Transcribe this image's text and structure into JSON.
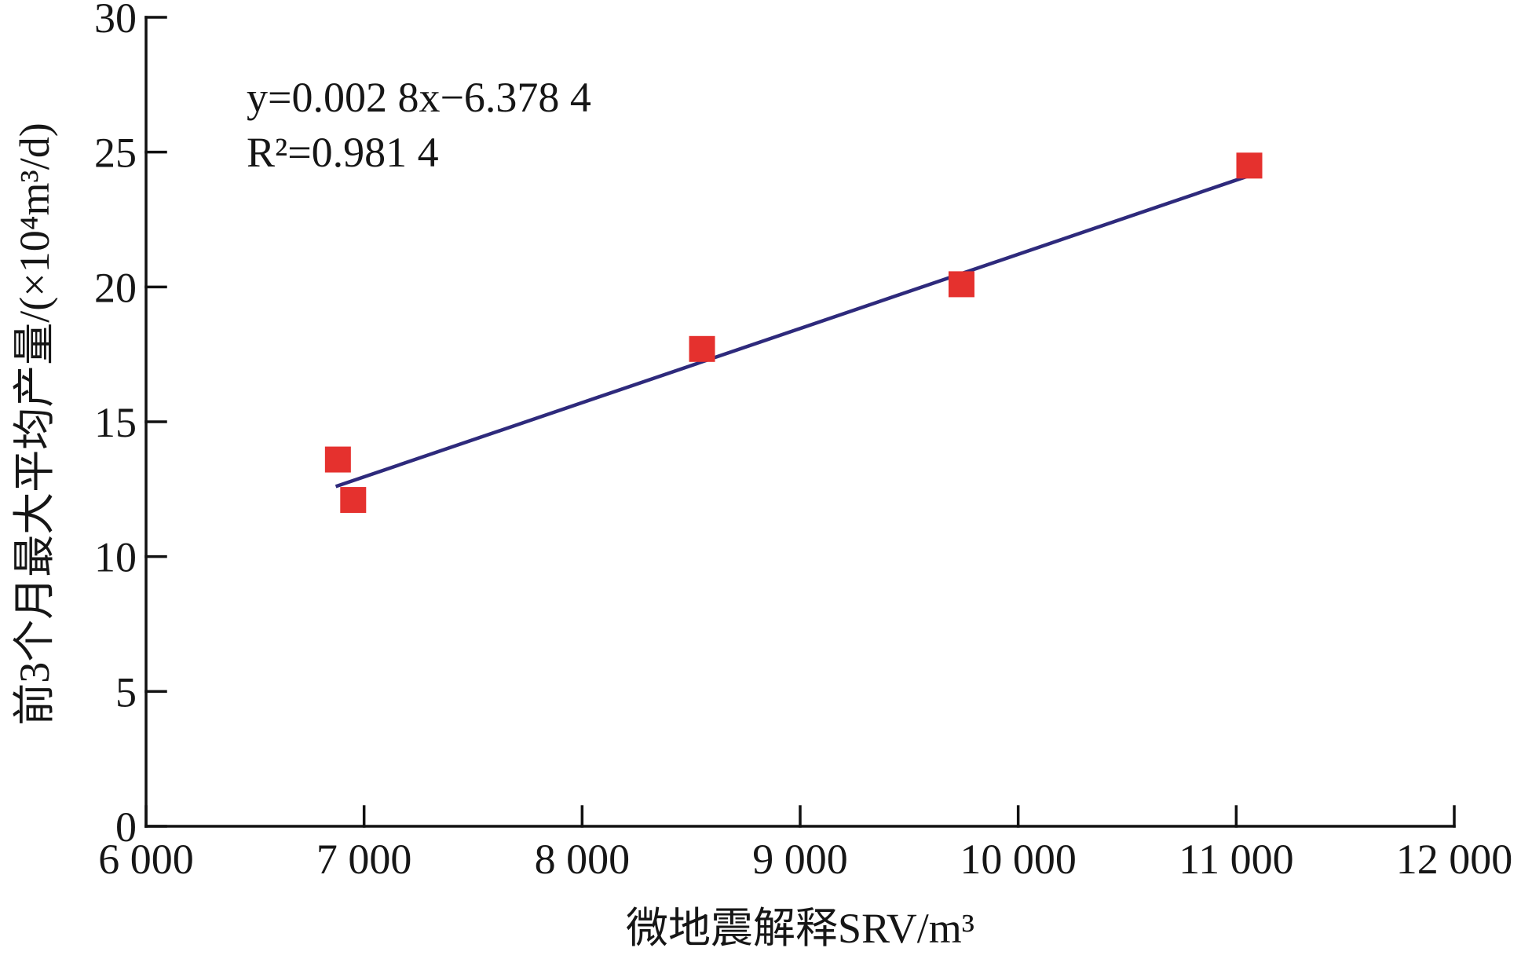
{
  "chart_data": {
    "type": "scatter",
    "xlabel": "微地震解释SRV/m³",
    "ylabel": "前3个月最大平均产量/(×10⁴m³/d)",
    "xlim": [
      6000,
      12000
    ],
    "ylim": [
      0,
      30
    ],
    "x_ticks": [
      6000,
      7000,
      8000,
      9000,
      10000,
      11000,
      12000
    ],
    "x_tick_labels": [
      "6 000",
      "7 000",
      "8 000",
      "9 000",
      "10 000",
      "11 000",
      "12 000"
    ],
    "y_ticks": [
      0,
      5,
      10,
      15,
      20,
      25,
      30
    ],
    "y_tick_labels": [
      "0",
      "5",
      "10",
      "15",
      "20",
      "25",
      "30"
    ],
    "grid": false,
    "legend": false,
    "series": [
      {
        "color": "#e5312e",
        "x": [
          6880,
          6950,
          8550,
          9740,
          11060
        ],
        "y": [
          13.6,
          12.1,
          17.7,
          20.1,
          24.5
        ]
      }
    ],
    "trendline": {
      "color": "#2e2a7c",
      "x": [
        6870,
        11050
      ],
      "y": [
        12.6,
        24.1
      ],
      "equation": "y=0.002 8x−6.378 4",
      "r_squared": "R²=0.981 4"
    }
  }
}
